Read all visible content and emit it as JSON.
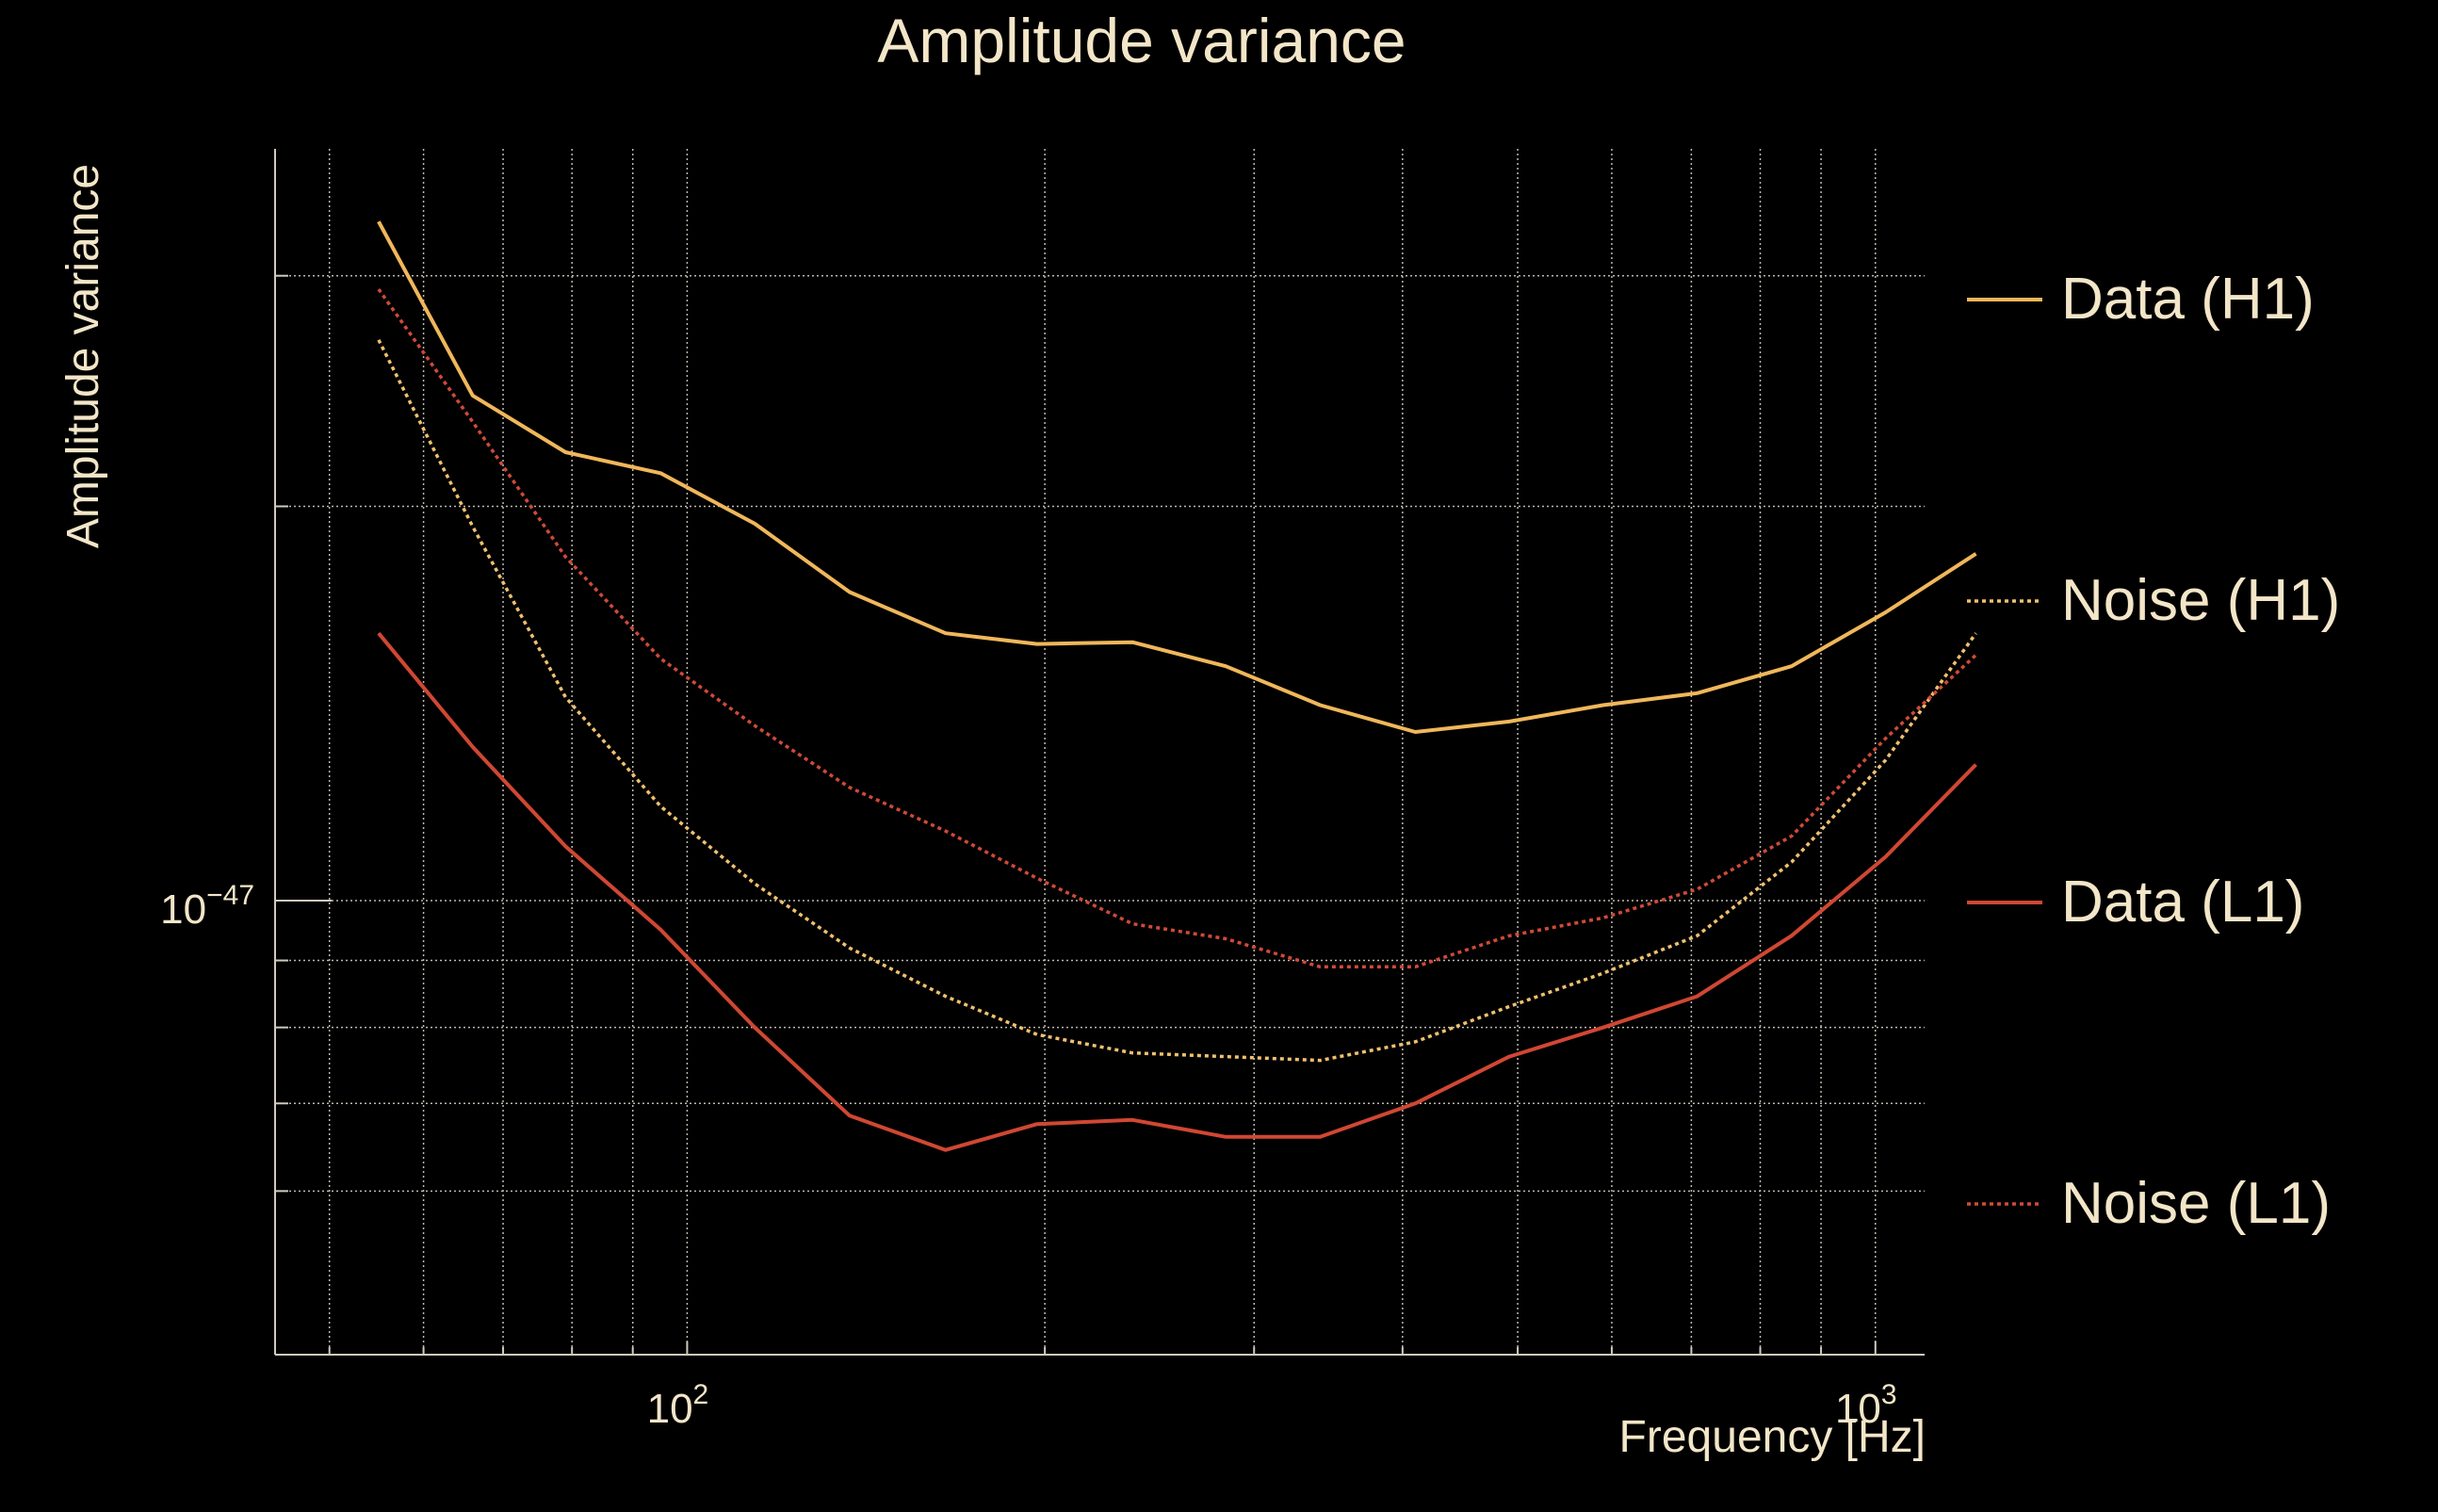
{
  "colors": {
    "background": "#000000",
    "text": "#f3e6c8",
    "grid": "#bdb8ad",
    "axis": "#cfcabe"
  },
  "chart_data": {
    "type": "line",
    "title": "Amplitude variance",
    "xlabel": "Frequency [Hz]",
    "ylabel": "Amplitude variance",
    "x_scale": "log",
    "y_scale": "log",
    "grid": true,
    "legend_placement": "right",
    "xlim": [
      45,
      1100
    ],
    "ylim": [
      4.5e-48,
      3.75e-47
    ],
    "x_major_ticks": [
      {
        "value": 100,
        "base": "10",
        "exp": "2"
      },
      {
        "value": 1000,
        "base": "10",
        "exp": "3"
      }
    ],
    "x_minor_ticks": [
      50,
      60,
      70,
      80,
      90,
      200,
      300,
      400,
      500,
      600,
      700,
      800,
      900
    ],
    "y_major_ticks": [
      {
        "value": 1e-47,
        "base": "10",
        "exp": "−47"
      }
    ],
    "y_minor_ticks": [
      6e-48,
      7e-48,
      8e-48,
      9e-48,
      2e-47,
      3e-47
    ],
    "x": [
      55,
      66,
      79,
      95,
      114,
      137,
      165,
      197,
      237,
      284,
      341,
      410,
      492,
      590,
      708,
      850,
      1020,
      1215
    ],
    "series": [
      {
        "name": "Data (H1)",
        "color": "#f0b75a",
        "dash": "solid",
        "values": [
          3.3e-47,
          2.43e-47,
          2.2e-47,
          2.12e-47,
          1.94e-47,
          1.72e-47,
          1.6e-47,
          1.57e-47,
          1.575e-47,
          1.51e-47,
          1.41e-47,
          1.345e-47,
          1.37e-47,
          1.41e-47,
          1.44e-47,
          1.51e-47,
          1.66e-47,
          1.84e-47
        ]
      },
      {
        "name": "Noise (H1)",
        "color": "#f0c070",
        "dash": "dotted",
        "values": [
          2.68e-47,
          1.93e-47,
          1.43e-47,
          1.18e-47,
          1.03e-47,
          9.2e-48,
          8.45e-48,
          7.9e-48,
          7.65e-48,
          7.6e-48,
          7.55e-48,
          7.8e-48,
          8.3e-48,
          8.8e-48,
          9.4e-48,
          1.07e-47,
          1.28e-47,
          1.6e-47
        ]
      },
      {
        "name": "Data (L1)",
        "color": "#d04733",
        "dash": "solid",
        "values": [
          1.6e-47,
          1.31e-47,
          1.1e-47,
          9.5e-48,
          8e-48,
          6.85e-48,
          6.45e-48,
          6.75e-48,
          6.8e-48,
          6.6e-48,
          6.6e-48,
          7e-48,
          7.6e-48,
          8e-48,
          8.45e-48,
          9.4e-48,
          1.08e-47,
          1.27e-47
        ]
      },
      {
        "name": "Noise (L1)",
        "color": "#cf4a38",
        "dash": "dotted",
        "values": [
          2.93e-47,
          2.32e-47,
          1.83e-47,
          1.53e-47,
          1.36e-47,
          1.22e-47,
          1.13e-47,
          1.04e-47,
          9.6e-48,
          9.35e-48,
          8.9e-48,
          8.9e-48,
          9.4e-48,
          9.7e-48,
          1.02e-47,
          1.12e-47,
          1.33e-47,
          1.54e-47
        ]
      }
    ]
  }
}
